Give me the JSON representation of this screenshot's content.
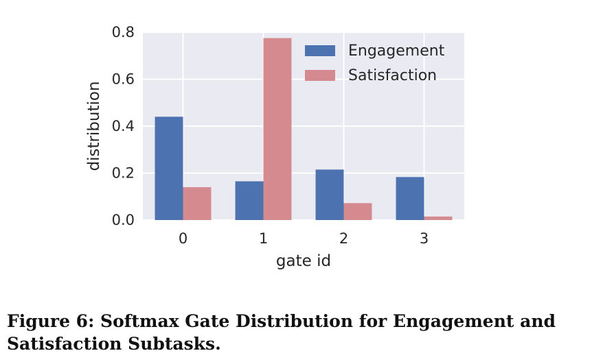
{
  "chart_data": {
    "type": "bar",
    "categories": [
      "0",
      "1",
      "2",
      "3"
    ],
    "series": [
      {
        "name": "Engagement",
        "values": [
          0.44,
          0.165,
          0.215,
          0.183
        ],
        "color": "#4c72b0"
      },
      {
        "name": "Satisfaction",
        "values": [
          0.14,
          0.775,
          0.072,
          0.015
        ],
        "color": "#d58a8f"
      }
    ],
    "title": "",
    "xlabel": "gate id",
    "ylabel": "distribution",
    "ylim": [
      0,
      0.8
    ],
    "yticks": [
      "0.0",
      "0.2",
      "0.4",
      "0.6",
      "0.8"
    ],
    "grid": true,
    "legend": "top-right",
    "background": "#eaeaf2"
  },
  "caption": "Figure 6: Softmax Gate Distribution for Engagement and Satisfaction Subtasks."
}
